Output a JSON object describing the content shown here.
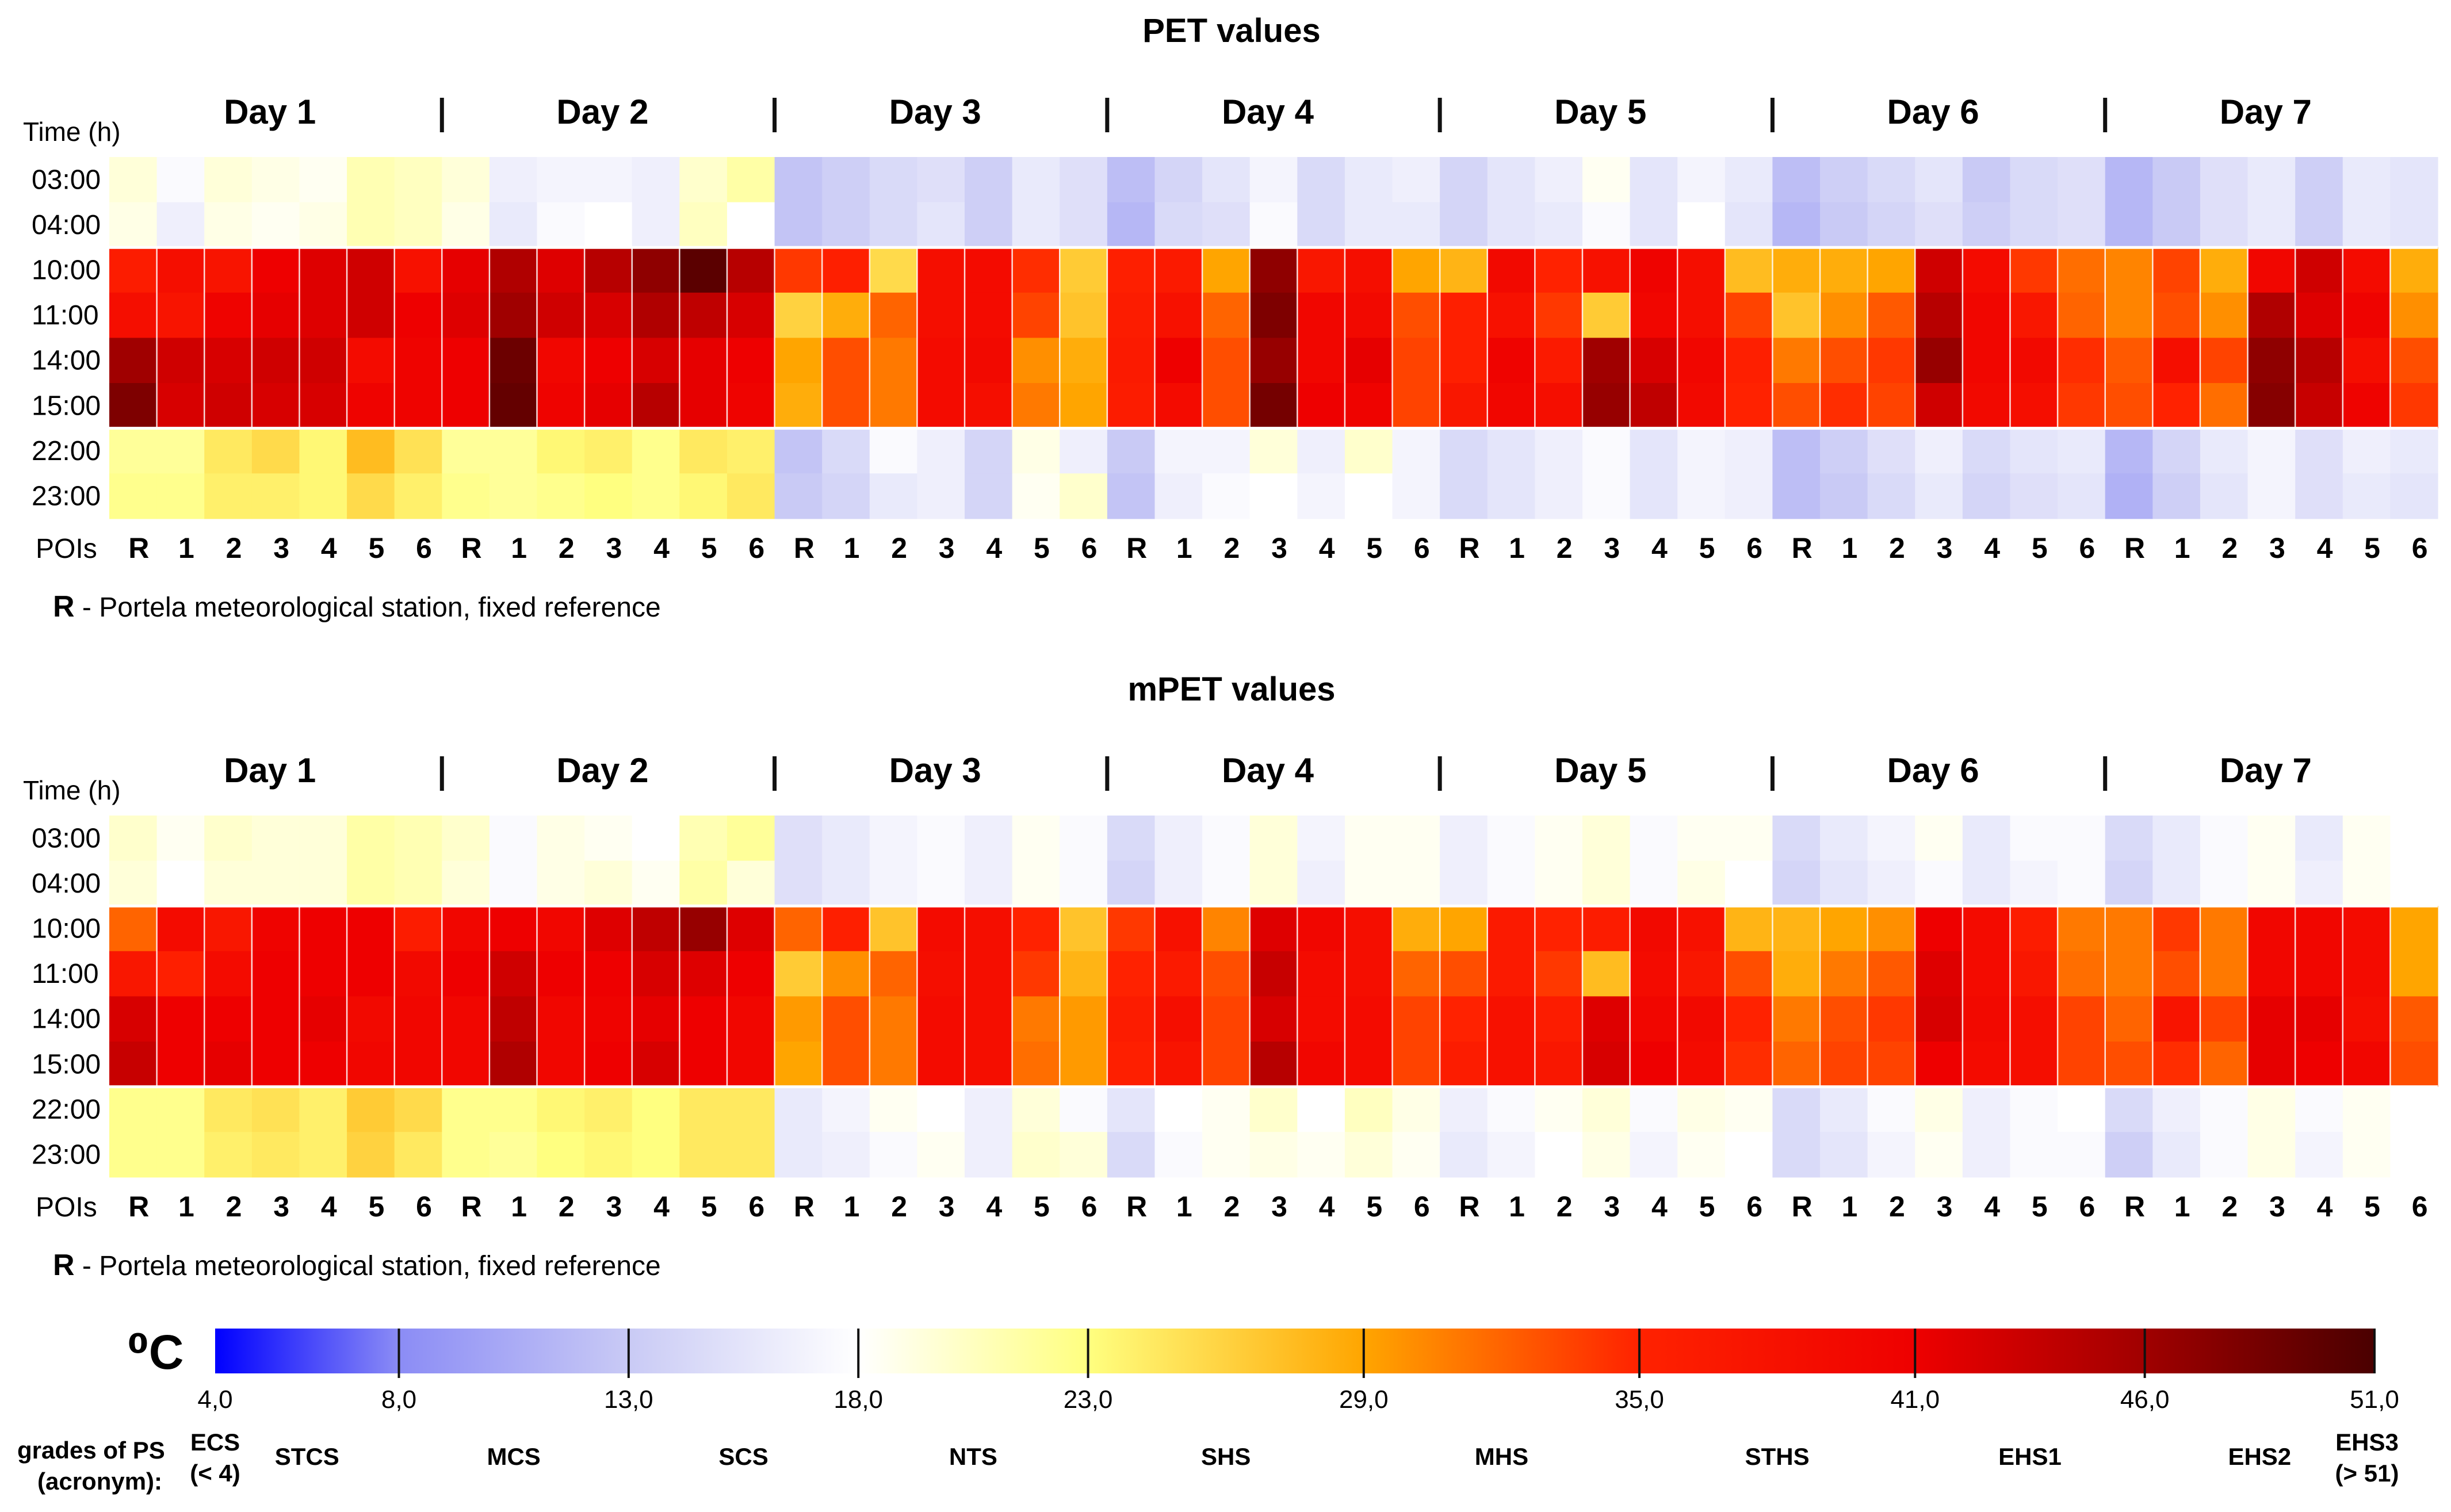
{
  "colors": {
    "scale_stops": [
      {
        "v": 4,
        "c": "#0000ff"
      },
      {
        "v": 8,
        "c": "#8b8cf5"
      },
      {
        "v": 13,
        "c": "#c9caf5"
      },
      {
        "v": 18,
        "c": "#ffffff"
      },
      {
        "v": 23,
        "c": "#ffff80"
      },
      {
        "v": 29,
        "c": "#ffa500"
      },
      {
        "v": 35,
        "c": "#ff2200"
      },
      {
        "v": 41,
        "c": "#ee0000"
      },
      {
        "v": 46,
        "c": "#a00000"
      },
      {
        "v": 51,
        "c": "#4a0000"
      }
    ]
  },
  "panels": [
    {
      "title": "PET values",
      "y_axis_label": "Time (h)",
      "times": [
        "03:00",
        "04:00",
        "10:00",
        "11:00",
        "14:00",
        "15:00",
        "22:00",
        "23:00"
      ],
      "days": [
        "Day 1",
        "Day 2",
        "Day 3",
        "Day 4",
        "Day 5",
        "Day 6",
        "Day 7"
      ],
      "poi_axis_label": "POIs",
      "pois": [
        "R",
        "1",
        "2",
        "3",
        "4",
        "5",
        "6"
      ],
      "note_key": "R",
      "note_text": " - Portela meteorological station, fixed reference",
      "chart_data": {
        "type": "heatmap",
        "row_labels": [
          "03:00",
          "04:00",
          "10:00",
          "11:00",
          "14:00",
          "15:00",
          "22:00",
          "23:00"
        ],
        "column_groups": [
          "Day 1",
          "Day 2",
          "Day 3",
          "Day 4",
          "Day 5",
          "Day 6",
          "Day 7"
        ],
        "column_labels": [
          "R",
          "1",
          "2",
          "3",
          "4",
          "5",
          "6"
        ],
        "unit": "°C",
        "values": [
          [
            19.5,
            17.5,
            19.5,
            19,
            18.5,
            21,
            20.5,
            19.5,
            16.5,
            17,
            17,
            16.5,
            20,
            21.5,
            12.5,
            13.5,
            14.5,
            15,
            13.5,
            16,
            15,
            12,
            14,
            15.5,
            17,
            14.5,
            16,
            16.5,
            14,
            15.5,
            16.5,
            18.5,
            15.5,
            17,
            16,
            12,
            13.5,
            14.5,
            15.5,
            13,
            14.5,
            15,
            11.5,
            13,
            15,
            16,
            13.5,
            16,
            15.5
          ],
          [
            19,
            16.5,
            19,
            18.5,
            19,
            21,
            20.5,
            19,
            16,
            17.5,
            18,
            16.5,
            20.5,
            18,
            12.5,
            13.5,
            14.5,
            15.5,
            13.5,
            16,
            15,
            11.5,
            14.5,
            15,
            17.5,
            14.5,
            16,
            16,
            14,
            15.5,
            16,
            17.5,
            15.5,
            18,
            15.5,
            11.5,
            13,
            14,
            15,
            13.5,
            14.5,
            15,
            11.5,
            13,
            15,
            16,
            13.5,
            16,
            15.5
          ],
          [
            36,
            38.5,
            37.5,
            41,
            42,
            43,
            38,
            41.5,
            45,
            42,
            44.5,
            47,
            50,
            44.5,
            34,
            35.5,
            25.5,
            38.5,
            39,
            34.5,
            26.5,
            35.5,
            36.5,
            29,
            47,
            37,
            38.5,
            29,
            28,
            39.5,
            35,
            38,
            40.5,
            38.5,
            27.5,
            28.5,
            28.5,
            29,
            43,
            39,
            34,
            31.5,
            30.5,
            33.5,
            28.5,
            40,
            43,
            39,
            28.5
          ],
          [
            38.5,
            37.5,
            40.5,
            41.5,
            42,
            43,
            41,
            42,
            46,
            43,
            42.5,
            45,
            44,
            42.5,
            26,
            28.5,
            32,
            38.5,
            39,
            33.5,
            27,
            36,
            38,
            32,
            48,
            40,
            39.5,
            33,
            35.5,
            38,
            34,
            26.5,
            40,
            38.5,
            33.5,
            27,
            30,
            32.5,
            44.5,
            40,
            37,
            32,
            30.5,
            33,
            30,
            45,
            42,
            40.5,
            30
          ],
          [
            46,
            43,
            42.5,
            43,
            43,
            39,
            40.5,
            41,
            49,
            40,
            41,
            42.5,
            41.5,
            41,
            29,
            33,
            31,
            39,
            39.5,
            30,
            28.5,
            36.5,
            41,
            33,
            46.5,
            40,
            41.5,
            33.5,
            35.5,
            40.5,
            36.5,
            46,
            42.5,
            40,
            35.5,
            31,
            33,
            34,
            46.5,
            40,
            39.5,
            34.5,
            32.5,
            38.5,
            33.5,
            47,
            44.5,
            38.5,
            33
          ],
          [
            48,
            42.5,
            43,
            42.5,
            42.5,
            40.5,
            40.5,
            41,
            49.5,
            40.5,
            41.5,
            44.5,
            41.5,
            40.5,
            28.5,
            33,
            31,
            39,
            38.5,
            31,
            29,
            36,
            39,
            33,
            48.5,
            41,
            40.5,
            33.5,
            37,
            40,
            38.5,
            46.5,
            44,
            39.5,
            35,
            33,
            34.5,
            33.5,
            43,
            39.5,
            38.5,
            34,
            33,
            35,
            31.5,
            47.5,
            43.5,
            40.5,
            34
          ],
          [
            22,
            22,
            24.5,
            25.5,
            23.5,
            27.5,
            25,
            22,
            22,
            23.5,
            24,
            22.5,
            24.5,
            24,
            12.5,
            14.5,
            17.5,
            16.5,
            14,
            19,
            16.5,
            13,
            17,
            17,
            19.5,
            16.5,
            20,
            17,
            14.5,
            15.5,
            16.5,
            17.5,
            15.5,
            17,
            16.5,
            12,
            13.5,
            15,
            16.5,
            14.5,
            15.5,
            16,
            11.5,
            14,
            16,
            17,
            15,
            16.5,
            16
          ],
          [
            22.5,
            22.5,
            24,
            24,
            23.5,
            25.5,
            24,
            22.5,
            22,
            22.5,
            23,
            22.5,
            23.5,
            24.5,
            13,
            14,
            16,
            16.5,
            14,
            18.5,
            20,
            12.5,
            16.5,
            17.5,
            18,
            17,
            18,
            17,
            14.5,
            15.5,
            16.5,
            17.5,
            15.5,
            17,
            16.5,
            12,
            13,
            14.5,
            16,
            14,
            15,
            15.5,
            11,
            13.5,
            15.5,
            17,
            15,
            16,
            15.5
          ]
        ]
      }
    },
    {
      "title": "mPET values",
      "y_axis_label": "Time (h)",
      "times": [
        "03:00",
        "04:00",
        "10:00",
        "11:00",
        "14:00",
        "15:00",
        "22:00",
        "23:00"
      ],
      "days": [
        "Day 1",
        "Day 2",
        "Day 3",
        "Day 4",
        "Day 5",
        "Day 6",
        "Day 7"
      ],
      "poi_axis_label": "POIs",
      "pois": [
        "R",
        "1",
        "2",
        "3",
        "4",
        "5",
        "6"
      ],
      "note_key": "R",
      "note_text": " - Portela meteorological station, fixed reference",
      "chart_data": {
        "type": "heatmap",
        "row_labels": [
          "03:00",
          "04:00",
          "10:00",
          "11:00",
          "14:00",
          "15:00",
          "22:00",
          "23:00"
        ],
        "column_groups": [
          "Day 1",
          "Day 2",
          "Day 3",
          "Day 4",
          "Day 5",
          "Day 6",
          "Day 7"
        ],
        "column_labels": [
          "R",
          "1",
          "2",
          "3",
          "4",
          "5",
          "6"
        ],
        "unit": "°C",
        "values": [
          [
            20,
            18.5,
            20,
            19.5,
            19.5,
            21.5,
            21,
            20,
            17.5,
            19,
            18.5,
            18,
            21,
            22,
            15,
            16,
            17,
            17.5,
            16.5,
            18.5,
            17.5,
            14.5,
            16.5,
            17.5,
            19.5,
            17,
            18.5,
            18.5,
            16.5,
            17.5,
            18.5,
            19.5,
            17.5,
            18.5,
            18.5,
            14.5,
            16,
            17,
            18.5,
            16,
            17.5,
            17.5,
            14.5,
            16,
            17.5,
            18.5,
            16,
            18.5,
            18
          ],
          [
            19.5,
            18,
            19.5,
            19.5,
            19.5,
            21.5,
            21,
            19.5,
            17.5,
            19,
            19.5,
            18.5,
            21.5,
            19.5,
            15,
            16,
            17,
            17.5,
            16.5,
            18.5,
            17.5,
            14,
            16.5,
            17.5,
            19.5,
            16.5,
            18.5,
            18.5,
            16.5,
            17.5,
            18.5,
            19.5,
            17.5,
            19,
            18,
            14,
            15.5,
            16.5,
            17.5,
            16,
            17,
            17.5,
            14,
            16,
            17.5,
            18.5,
            16.5,
            18.5,
            18
          ],
          [
            32,
            39,
            37,
            40.5,
            41,
            41,
            36,
            40,
            41,
            40,
            42,
            44,
            46.5,
            42,
            32,
            35.5,
            27,
            39,
            38.5,
            35,
            27,
            34,
            38,
            30.5,
            42,
            40,
            38.5,
            28.5,
            29,
            36.5,
            35,
            36,
            39.5,
            38,
            28,
            28,
            29,
            30,
            41,
            39,
            36,
            31,
            31,
            34,
            31,
            40,
            40,
            39,
            29
          ],
          [
            37,
            35.5,
            39,
            41,
            41,
            41,
            39.5,
            41,
            43,
            41,
            41,
            42.5,
            42,
            41,
            26.5,
            30,
            32,
            38.5,
            38.5,
            34,
            28,
            35,
            36.5,
            33,
            43.5,
            39,
            38.5,
            32,
            33,
            36.5,
            34,
            27.5,
            39,
            37,
            33,
            28.5,
            31,
            32.5,
            42,
            39,
            37,
            31.5,
            31,
            33,
            31,
            40,
            40,
            39,
            29
          ],
          [
            42.5,
            41,
            41,
            41,
            41.5,
            39.5,
            40,
            40,
            44,
            40,
            40.5,
            41.5,
            41,
            40,
            29.5,
            33,
            31,
            39,
            38.5,
            31,
            29.5,
            36,
            38.5,
            33.5,
            42.5,
            39,
            39,
            33.5,
            35,
            38,
            36,
            42,
            40,
            39.5,
            35,
            31,
            33,
            34,
            42.5,
            39.5,
            38.5,
            33.5,
            32,
            37.5,
            33.5,
            41.5,
            41.5,
            38.5,
            32.5
          ],
          [
            43.5,
            41,
            41.5,
            41,
            41,
            40,
            40,
            40,
            45,
            40,
            41,
            42.5,
            41,
            40,
            29,
            33,
            31,
            39,
            38.5,
            31.5,
            29.5,
            35.5,
            37.5,
            33.5,
            44.5,
            40,
            39,
            33.5,
            36,
            38,
            37,
            42.5,
            41,
            39,
            34.5,
            32,
            33.5,
            33.5,
            41,
            39,
            38.5,
            33.5,
            33,
            34.5,
            32,
            41.5,
            41,
            40,
            33
          ],
          [
            22.5,
            22.5,
            24.5,
            25,
            24,
            26.5,
            25.5,
            22.5,
            22.5,
            23.5,
            24,
            23,
            24.5,
            24.5,
            16,
            17,
            18.5,
            18,
            16.5,
            19.5,
            17.5,
            15.5,
            18,
            18.5,
            20,
            18,
            20.5,
            19,
            16.5,
            17.5,
            18.5,
            19.5,
            17.5,
            19,
            18.5,
            14.5,
            16,
            17.5,
            19,
            16.5,
            17.5,
            18,
            14.5,
            16.5,
            17.5,
            19,
            17.5,
            18.5,
            18
          ],
          [
            22.5,
            22.5,
            24,
            24.5,
            24,
            26,
            24.5,
            22.5,
            22,
            23,
            23.5,
            23,
            24.5,
            24.5,
            16,
            16.5,
            17.5,
            18.5,
            16.5,
            20,
            19.5,
            14.5,
            17.5,
            18.5,
            19,
            18.5,
            19.5,
            18.5,
            16,
            17,
            18,
            19,
            17,
            18.5,
            18,
            14.5,
            15.5,
            17,
            18.5,
            16.5,
            17.5,
            17.5,
            13.5,
            16,
            17.5,
            19,
            17,
            18.5,
            18
          ]
        ]
      }
    }
  ],
  "legend": {
    "unit_label": "⁰C",
    "tick_labels": [
      "4,0",
      "8,0",
      "13,0",
      "18,0",
      "23,0",
      "29,0",
      "35,0",
      "41,0",
      "46,0",
      "51,0"
    ],
    "tick_values": [
      4,
      8,
      13,
      18,
      23,
      29,
      35,
      41,
      46,
      51
    ],
    "grades_label_1": "grades of PS",
    "grades_label_2": "(acronym):",
    "grades": [
      {
        "lines": [
          "ECS",
          "(< 4)"
        ],
        "value": 4
      },
      {
        "lines": [
          "STCS"
        ],
        "value": 6
      },
      {
        "lines": [
          "MCS"
        ],
        "value": 10.5
      },
      {
        "lines": [
          "SCS"
        ],
        "value": 15.5
      },
      {
        "lines": [
          "NTS"
        ],
        "value": 20.5
      },
      {
        "lines": [
          "SHS"
        ],
        "value": 26
      },
      {
        "lines": [
          "MHS"
        ],
        "value": 32
      },
      {
        "lines": [
          "STHS"
        ],
        "value": 38
      },
      {
        "lines": [
          "EHS1"
        ],
        "value": 43.5
      },
      {
        "lines": [
          "EHS2"
        ],
        "value": 48.5
      },
      {
        "lines": [
          "EHS3",
          "(> 51)"
        ],
        "value": 51
      }
    ]
  }
}
